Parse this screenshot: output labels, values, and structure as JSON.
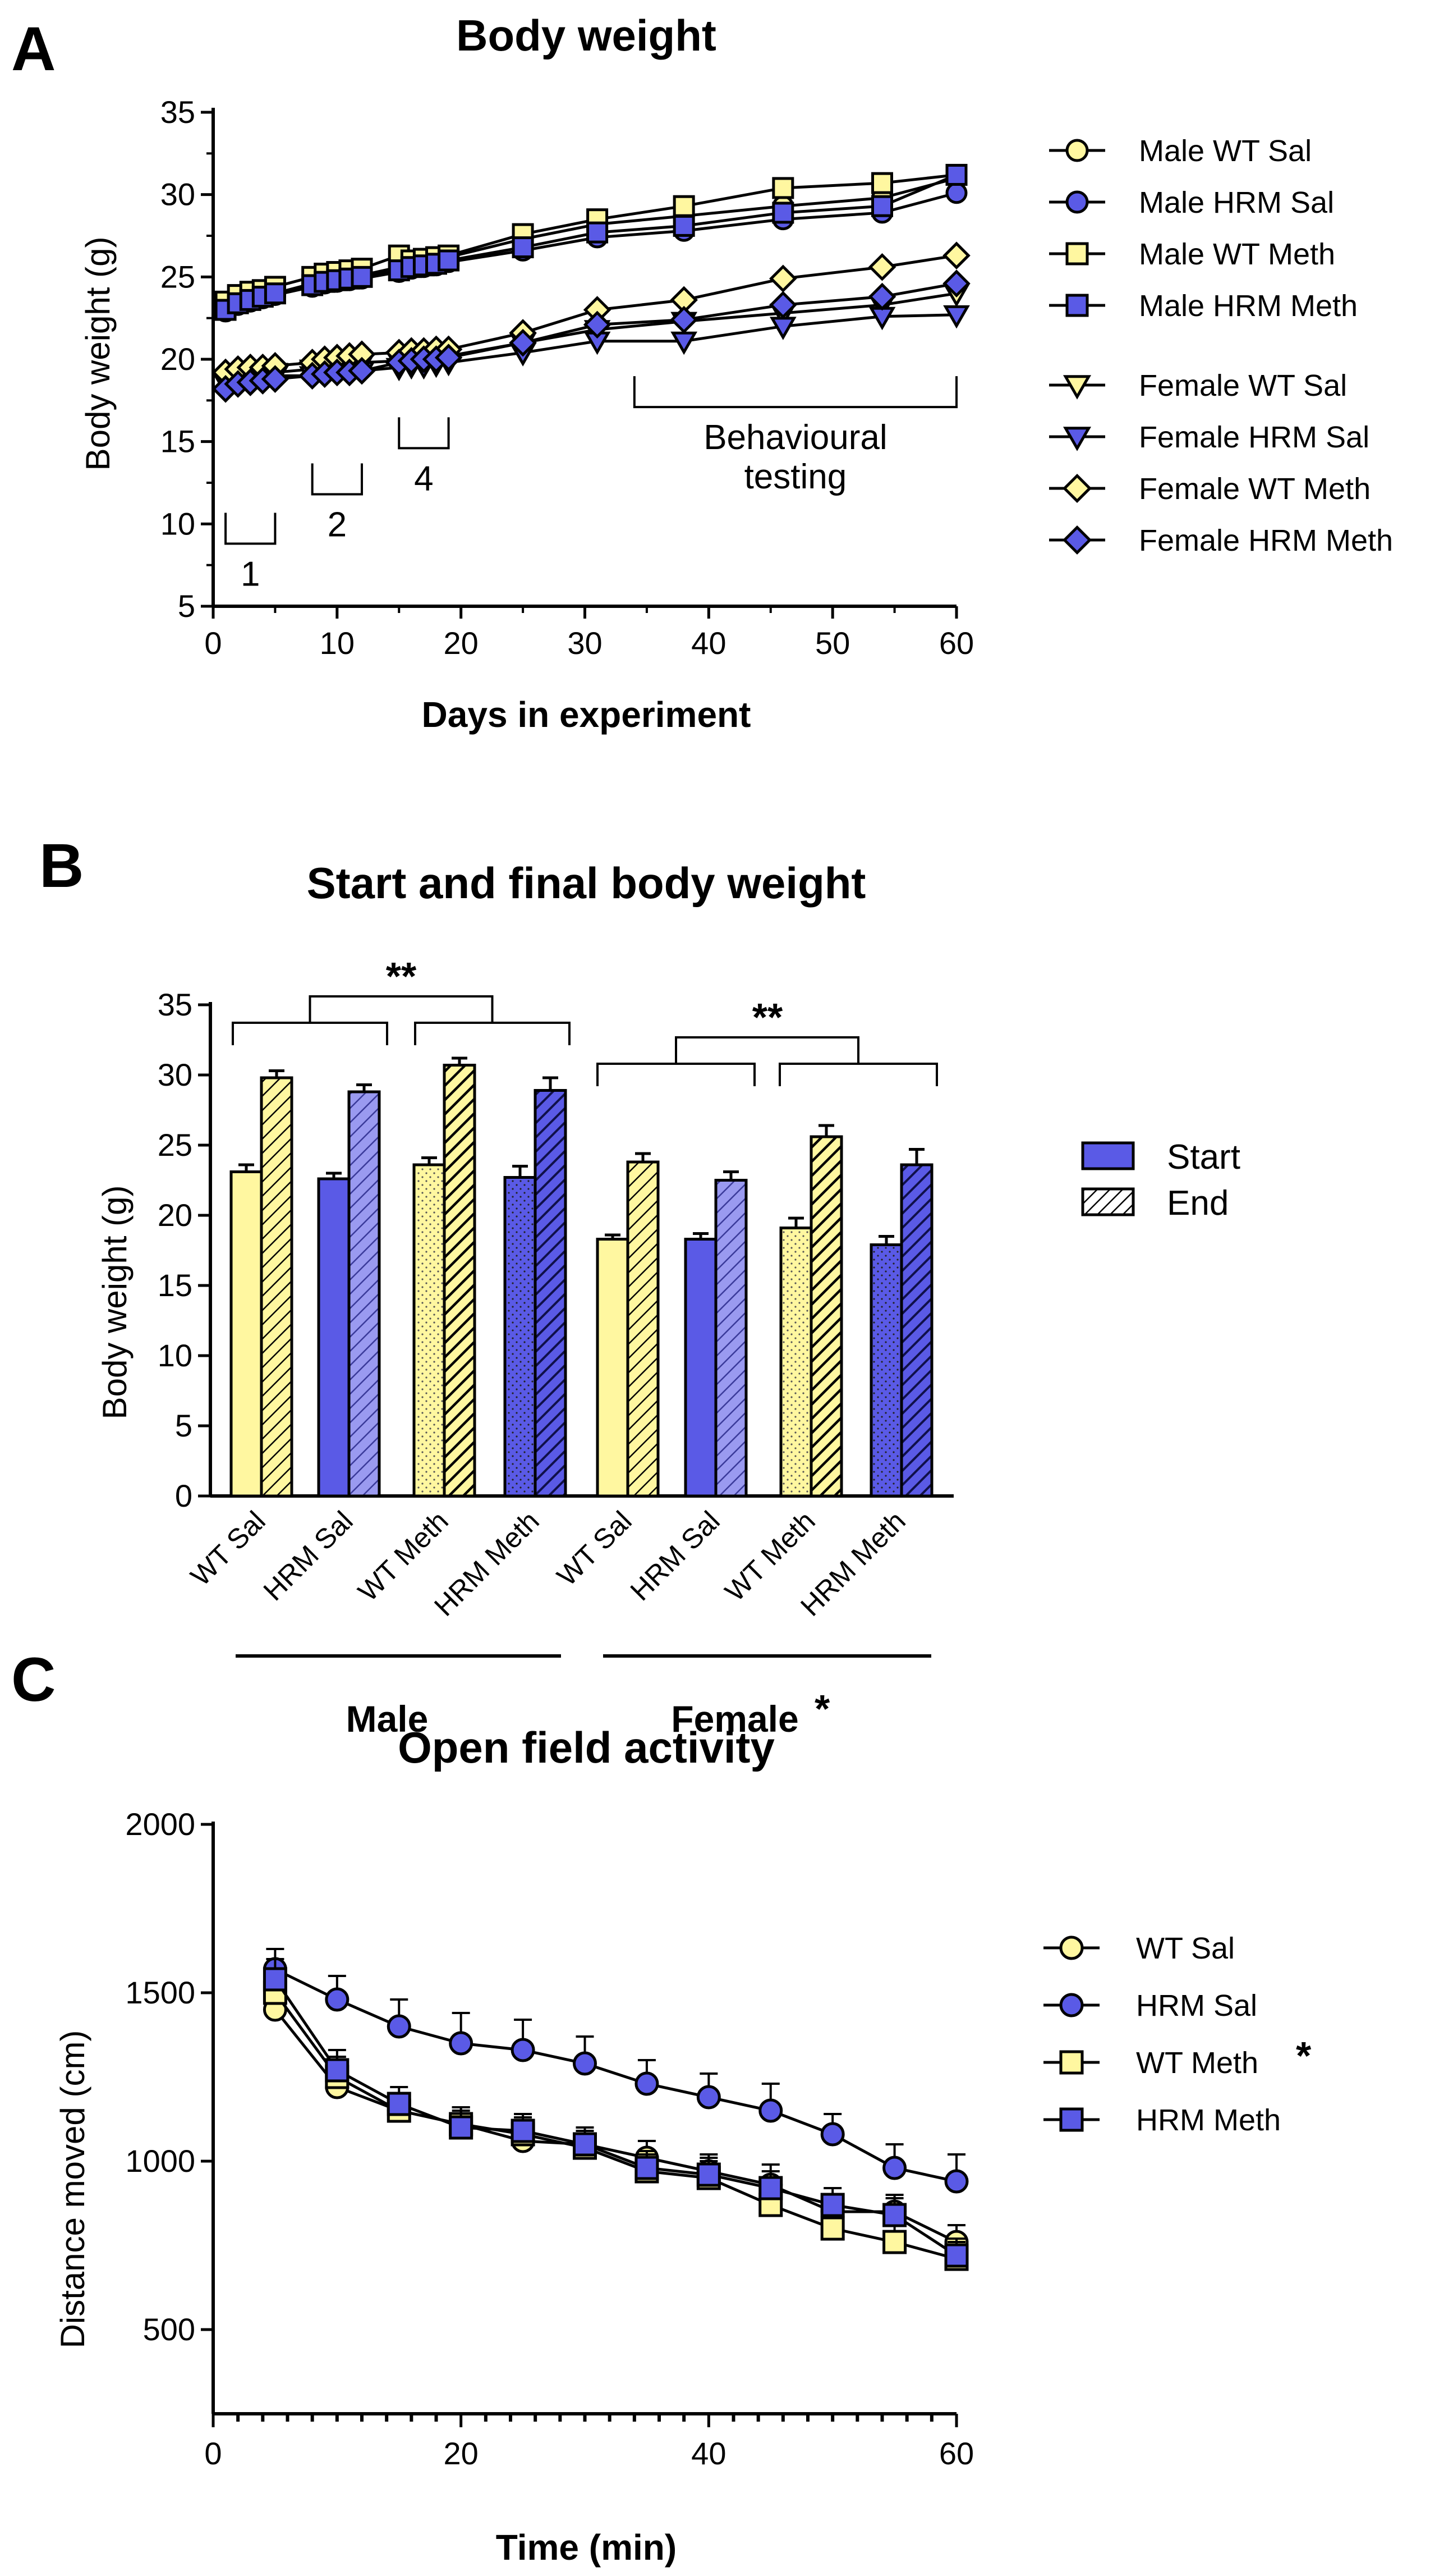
{
  "colors": {
    "yellow": "#FFF7A0",
    "blue": "#5A5AE6",
    "light_blue": "#9A9AF0",
    "dark_blue": "#1A1AD0",
    "black": "#000000"
  },
  "chart_data": [
    {
      "panel": "A",
      "type": "line",
      "title": "Body weight",
      "xlabel": "Days in experiment",
      "ylabel": "Body weight (g)",
      "xlim": [
        0,
        60
      ],
      "ylim": [
        5,
        35
      ],
      "xticks": [
        "0",
        "10",
        "20",
        "30",
        "40",
        "50",
        "60"
      ],
      "yticks": [
        "5",
        "10",
        "15",
        "20",
        "25",
        "30",
        "35"
      ],
      "annotations": [
        {
          "label": "1",
          "from": 1,
          "to": 5
        },
        {
          "label": "2",
          "from": 8,
          "to": 12
        },
        {
          "label": "4",
          "from": 15,
          "to": 19
        },
        {
          "label": "Behavioural\ntesting",
          "from": 34,
          "to": 60
        }
      ],
      "x": [
        1,
        2,
        3,
        4,
        5,
        8,
        9,
        10,
        11,
        12,
        15,
        16,
        17,
        18,
        19,
        25,
        31,
        38,
        46,
        54,
        60
      ],
      "series": [
        {
          "name": "Male WT Sal",
          "marker": "circle",
          "fill": "yellow",
          "values": [
            23.2,
            23.6,
            23.8,
            23.9,
            24.0,
            24.6,
            24.8,
            24.9,
            25.0,
            25.1,
            25.6,
            25.8,
            25.9,
            26.0,
            26.2,
            27.3,
            28.2,
            28.7,
            29.3,
            29.8,
            31.0
          ]
        },
        {
          "name": "Male HRM Sal",
          "marker": "circle",
          "fill": "blue",
          "values": [
            22.9,
            23.3,
            23.5,
            23.7,
            23.9,
            24.4,
            24.6,
            24.7,
            24.8,
            24.9,
            25.3,
            25.5,
            25.6,
            25.7,
            25.9,
            26.6,
            27.4,
            27.8,
            28.5,
            28.9,
            30.1
          ]
        },
        {
          "name": "Male WT Meth",
          "marker": "square",
          "fill": "yellow",
          "values": [
            23.5,
            23.9,
            24.1,
            24.2,
            24.4,
            25.0,
            25.2,
            25.3,
            25.4,
            25.5,
            26.3,
            26.0,
            26.1,
            26.2,
            26.3,
            27.6,
            28.5,
            29.3,
            30.4,
            30.7,
            31.2
          ]
        },
        {
          "name": "Male HRM Meth",
          "marker": "square",
          "fill": "blue",
          "values": [
            23.0,
            23.4,
            23.6,
            23.8,
            24.0,
            24.5,
            24.7,
            24.8,
            24.9,
            25.0,
            25.4,
            25.6,
            25.7,
            25.8,
            26.0,
            26.8,
            27.7,
            28.1,
            28.9,
            29.3,
            31.2
          ]
        },
        {
          "name": "Female WT Sal",
          "marker": "triangle-down",
          "fill": "yellow",
          "values": [
            18.8,
            19.0,
            19.1,
            19.1,
            19.2,
            19.4,
            19.5,
            19.6,
            19.7,
            19.8,
            19.9,
            20.0,
            20.1,
            20.1,
            20.2,
            21.0,
            21.8,
            22.3,
            22.8,
            23.3,
            24.0
          ]
        },
        {
          "name": "Female HRM Sal",
          "marker": "triangle-down",
          "fill": "blue",
          "values": [
            18.6,
            18.8,
            18.9,
            18.9,
            19.0,
            19.0,
            19.1,
            19.2,
            19.2,
            19.3,
            19.5,
            19.6,
            19.6,
            19.7,
            19.8,
            20.4,
            21.1,
            21.1,
            22.0,
            22.6,
            22.7
          ]
        },
        {
          "name": "Female WT Meth",
          "marker": "diamond",
          "fill": "yellow",
          "values": [
            19.2,
            19.4,
            19.5,
            19.5,
            19.6,
            19.8,
            20.0,
            20.1,
            20.2,
            20.3,
            20.4,
            20.5,
            20.5,
            20.6,
            20.6,
            21.6,
            23.0,
            23.6,
            24.9,
            25.6,
            26.3
          ]
        },
        {
          "name": "Female HRM Meth",
          "marker": "diamond",
          "fill": "blue",
          "values": [
            18.2,
            18.5,
            18.6,
            18.7,
            18.8,
            19.0,
            19.1,
            19.2,
            19.2,
            19.3,
            19.8,
            19.9,
            20.0,
            20.0,
            20.1,
            21.0,
            22.1,
            22.4,
            23.3,
            23.8,
            24.6
          ]
        }
      ]
    },
    {
      "panel": "B",
      "type": "bar",
      "title": "Start and final body weight",
      "ylabel": "Body weight (g)",
      "ylim": [
        0,
        35
      ],
      "yticks": [
        "0",
        "5",
        "10",
        "15",
        "20",
        "25",
        "30",
        "35"
      ],
      "legend": [
        "Start",
        "End"
      ],
      "groups": [
        "Male",
        "Female"
      ],
      "group_marker": "*",
      "significance": "**",
      "categories": [
        "WT Sal",
        "HRM Sal",
        "WT Meth",
        "HRM Meth",
        "WT Sal",
        "HRM Sal",
        "WT Meth",
        "HRM Meth"
      ],
      "series": [
        {
          "name": "Start",
          "values": [
            23.1,
            22.6,
            23.6,
            22.7,
            18.3,
            18.3,
            19.1,
            17.9
          ],
          "errors": [
            0.5,
            0.4,
            0.5,
            0.8,
            0.3,
            0.4,
            0.7,
            0.6
          ]
        },
        {
          "name": "End",
          "values": [
            29.8,
            28.8,
            30.7,
            28.9,
            23.8,
            22.5,
            25.6,
            23.6
          ],
          "errors": [
            0.5,
            0.5,
            0.5,
            0.9,
            0.6,
            0.6,
            0.8,
            1.1
          ]
        }
      ]
    },
    {
      "panel": "C",
      "type": "line",
      "title": "Open field activity",
      "xlabel": "Time (min)",
      "ylabel": "Distance moved (cm)",
      "xlim": [
        0,
        60
      ],
      "ylim": [
        250,
        2000
      ],
      "xticks": [
        "0",
        "20",
        "40",
        "60"
      ],
      "yticks": [
        "500",
        "1000",
        "1500",
        "2000"
      ],
      "x": [
        5,
        10,
        15,
        20,
        25,
        30,
        35,
        40,
        45,
        50,
        55,
        60
      ],
      "series": [
        {
          "name": "WT Sal",
          "marker": "circle",
          "fill": "yellow",
          "values": [
            1450,
            1220,
            1150,
            1110,
            1060,
            1050,
            1010,
            970,
            930,
            850,
            850,
            760
          ],
          "errors": [
            60,
            60,
            50,
            50,
            60,
            50,
            50,
            50,
            60,
            50,
            50,
            50
          ]
        },
        {
          "name": "HRM Sal",
          "marker": "circle",
          "fill": "blue",
          "values": [
            1570,
            1480,
            1400,
            1350,
            1330,
            1290,
            1230,
            1190,
            1150,
            1080,
            980,
            940
          ],
          "errors": [
            60,
            70,
            80,
            90,
            90,
            80,
            70,
            70,
            80,
            60,
            70,
            80
          ]
        },
        {
          "name": "WT Meth",
          "marker": "square",
          "fill": "yellow",
          "note": "*",
          "values": [
            1500,
            1250,
            1150,
            1110,
            1080,
            1040,
            970,
            950,
            870,
            800,
            760,
            710
          ],
          "errors": [
            60,
            60,
            50,
            50,
            50,
            50,
            50,
            50,
            50,
            50,
            50,
            50
          ]
        },
        {
          "name": "HRM Meth",
          "marker": "square",
          "fill": "blue",
          "values": [
            1540,
            1270,
            1170,
            1100,
            1090,
            1050,
            980,
            960,
            920,
            870,
            840,
            720
          ],
          "errors": [
            60,
            60,
            50,
            50,
            50,
            50,
            50,
            50,
            50,
            50,
            50,
            50
          ]
        }
      ]
    }
  ],
  "panels": [
    {
      "letter": "A"
    },
    {
      "letter": "B"
    },
    {
      "letter": "C"
    }
  ]
}
